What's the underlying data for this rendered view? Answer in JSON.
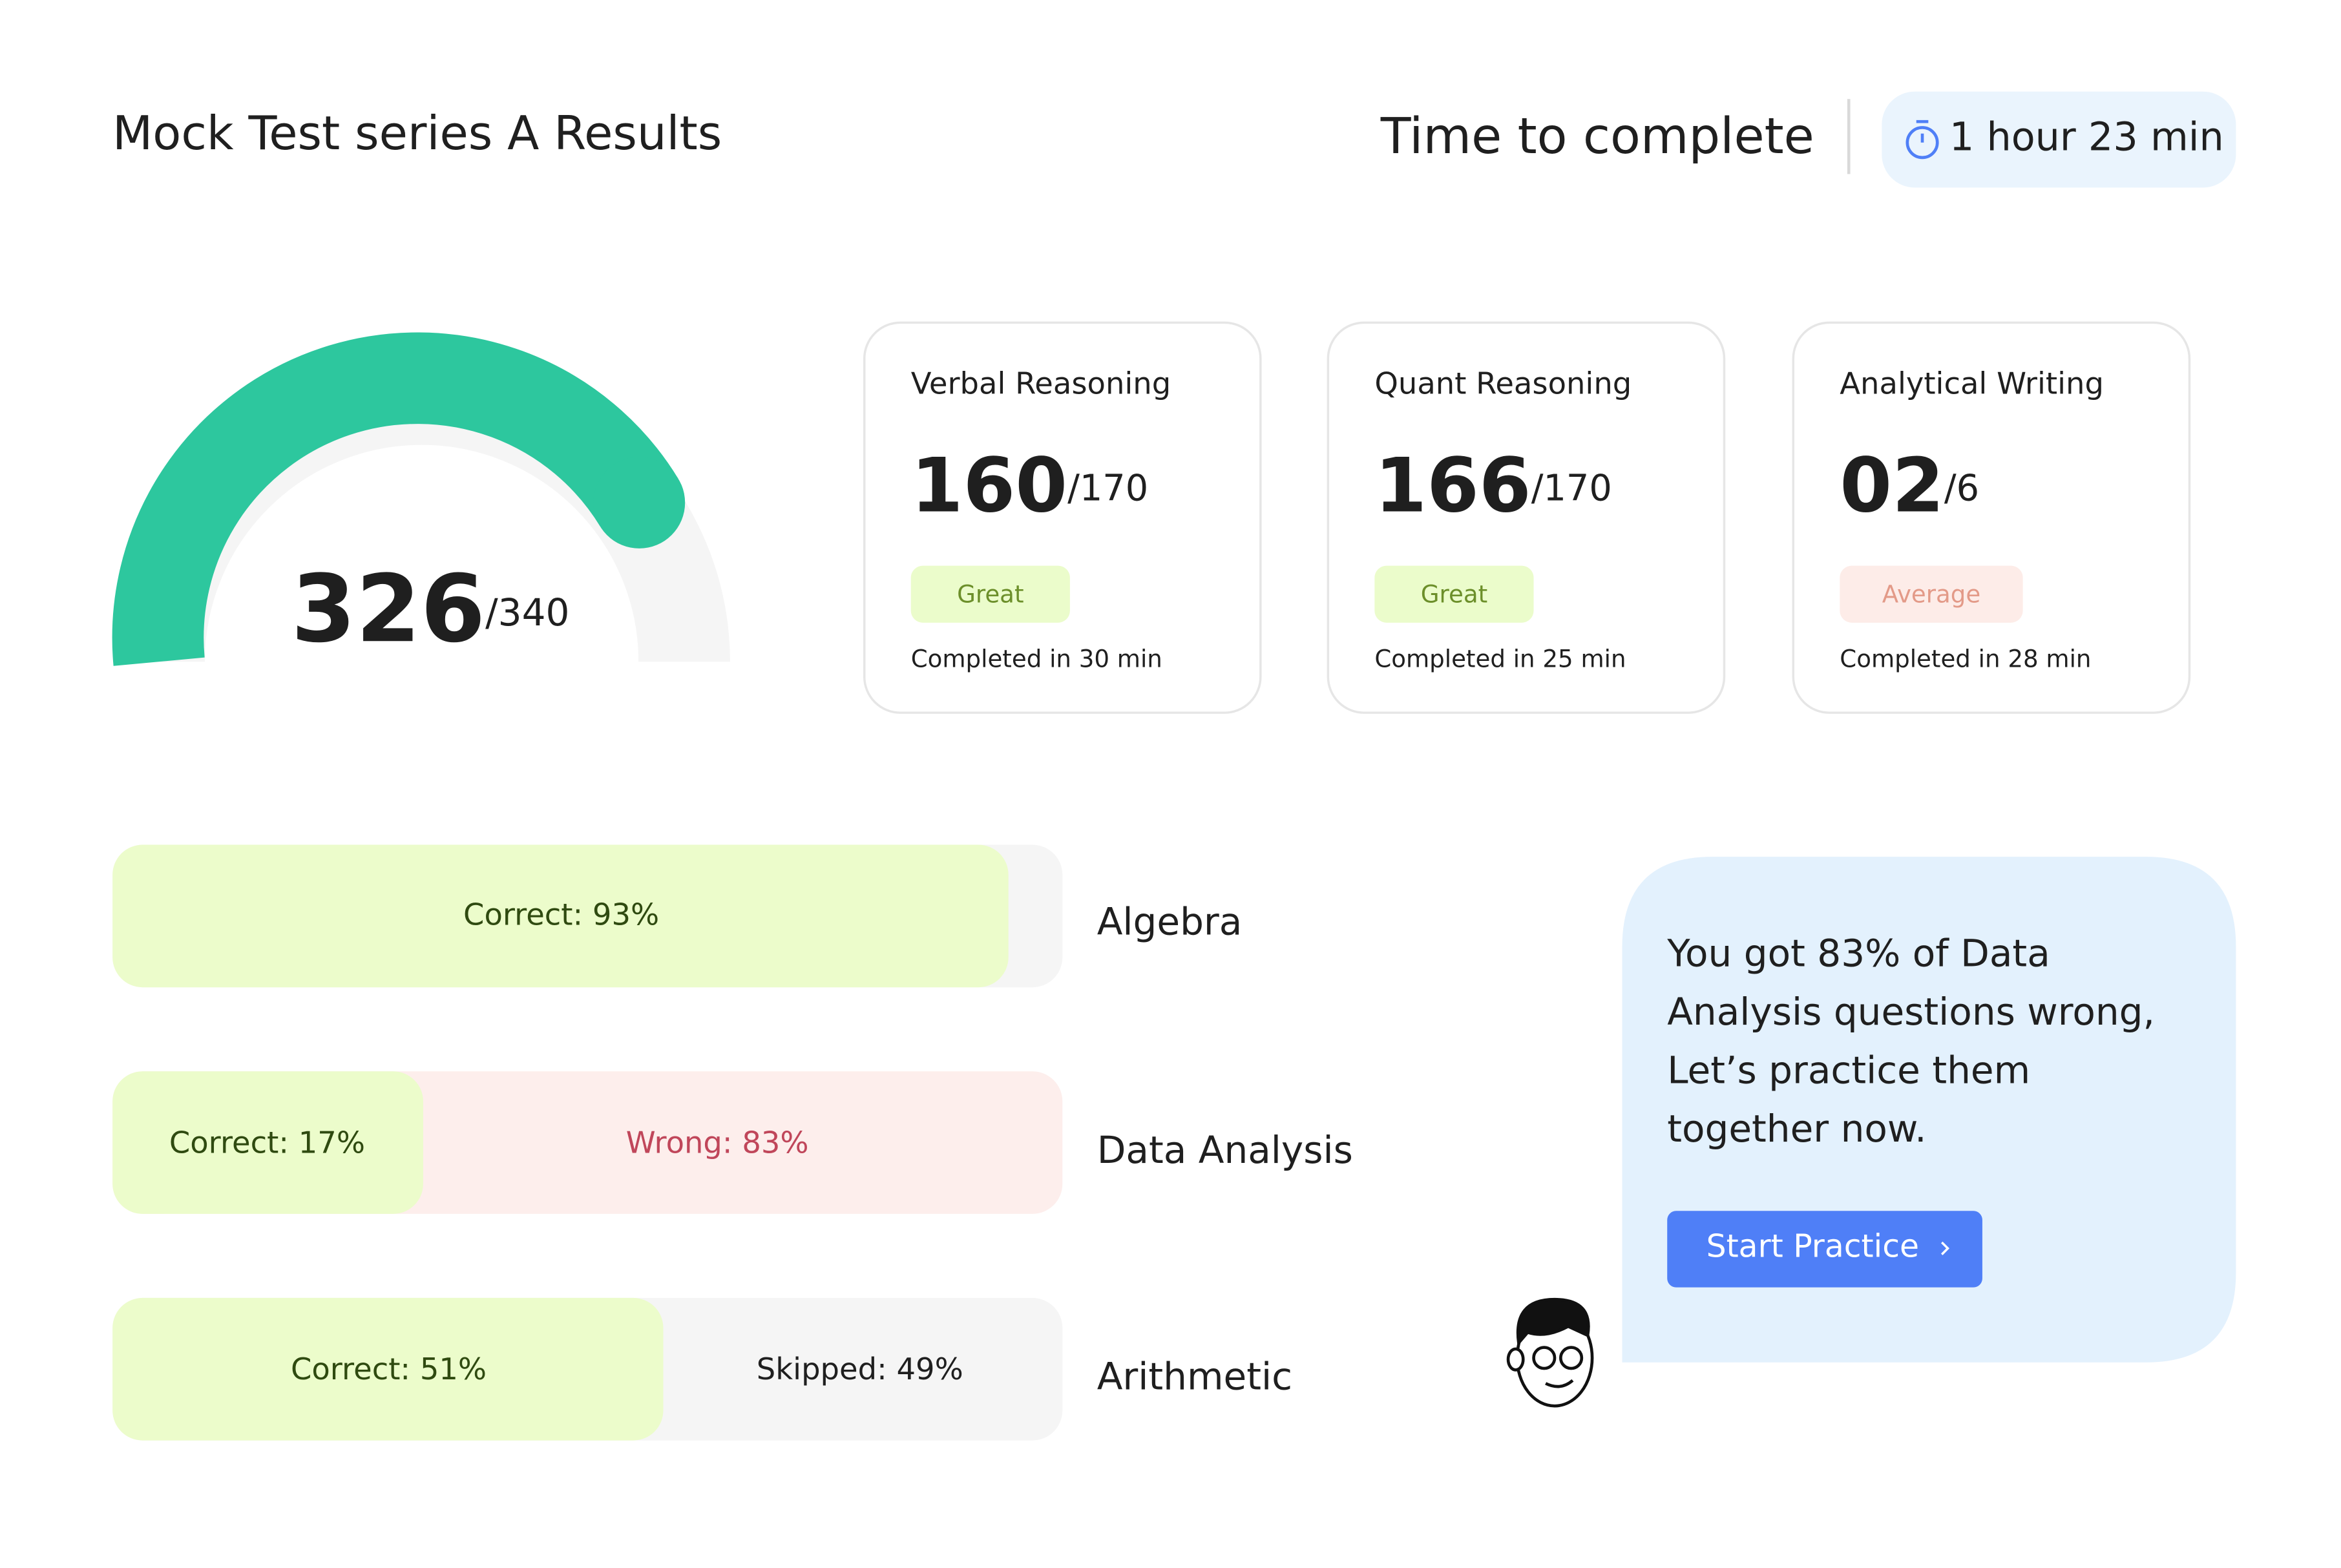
{
  "header": {
    "title": "Mock Test series A Results",
    "time_label": "Time to complete",
    "time_value": "1 hour 23 min"
  },
  "total": {
    "score": "326",
    "max": "/340"
  },
  "cards": [
    {
      "title": "Verbal Reasoning",
      "score": "160",
      "max": "/170",
      "rating": "Great",
      "completed": "Completed in 30 min"
    },
    {
      "title": "Quant Reasoning",
      "score": "166",
      "max": "/170",
      "rating": "Great",
      "completed": "Completed in 25 min"
    },
    {
      "title": "Analytical Writing",
      "score": "02",
      "max": "/6",
      "rating": "Average",
      "completed": "Completed in 28 min"
    }
  ],
  "topics": [
    {
      "name": "Algebra",
      "segments": [
        "Correct: 93%"
      ]
    },
    {
      "name": "Data Analysis",
      "segments": [
        "Correct: 17%",
        "Wrong: 83%"
      ]
    },
    {
      "name": "Arithmetic",
      "segments": [
        "Correct: 51%",
        "Skipped: 49%"
      ]
    }
  ],
  "message": {
    "lines": [
      "You got 83% of Data",
      "Analysis questions wrong,",
      "Let’s practice them",
      "together now."
    ],
    "button": "Start Practice"
  }
}
